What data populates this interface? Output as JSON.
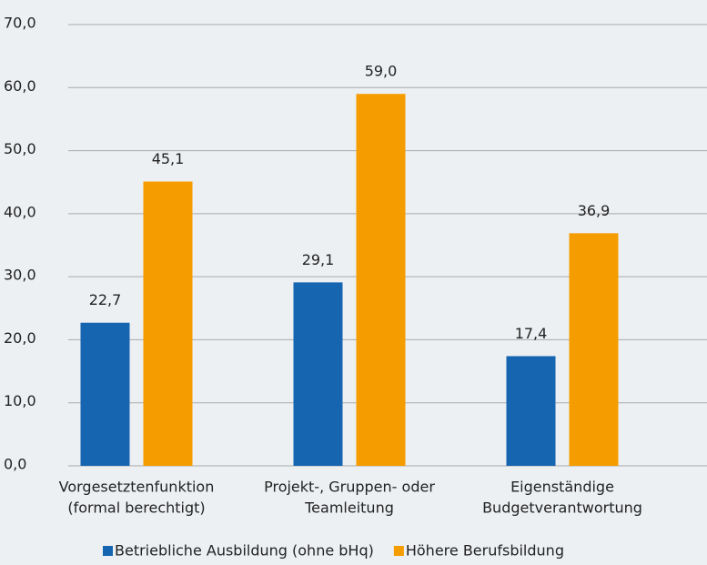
{
  "chart_data": {
    "type": "bar",
    "categories": [
      [
        "Vorgesetztenfunktion",
        "(formal berechtigt)"
      ],
      [
        "Projekt-, Gruppen- oder",
        "Teamleitung"
      ],
      [
        "Eigenständige",
        "Budgetverantwortung"
      ]
    ],
    "series": [
      {
        "name": "Betriebliche Ausbildung (ohne bHq)",
        "color": "#1565b0",
        "values": [
          22.7,
          29.1,
          17.4
        ],
        "value_labels": [
          "22,7",
          "29,1",
          "17,4"
        ]
      },
      {
        "name": "Höhere Berufsbildung",
        "color": "#f59c00",
        "values": [
          45.1,
          59.0,
          36.9
        ],
        "value_labels": [
          "45,1",
          "59,0",
          "36,9"
        ]
      }
    ],
    "ylim": [
      0,
      70
    ],
    "yticks": [
      {
        "value": 0,
        "label": "0,0"
      },
      {
        "value": 10,
        "label": "10,0"
      },
      {
        "value": 20,
        "label": "20,0"
      },
      {
        "value": 30,
        "label": "30,0"
      },
      {
        "value": 40,
        "label": "40,0"
      },
      {
        "value": 50,
        "label": "50,0"
      },
      {
        "value": 60,
        "label": "60,0"
      },
      {
        "value": 70,
        "label": "70,0"
      }
    ],
    "grid": true,
    "legend": "bottom"
  }
}
